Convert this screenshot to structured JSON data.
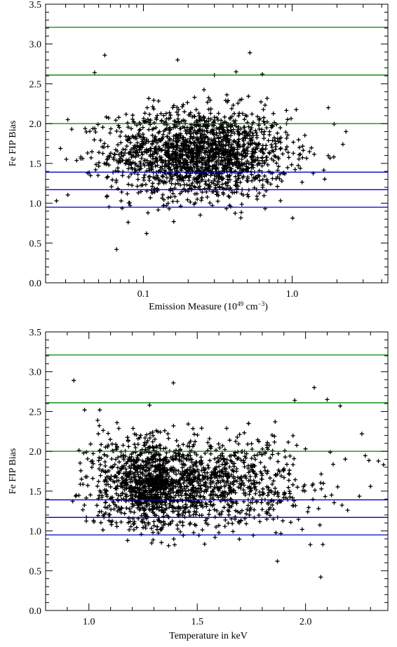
{
  "chart_data": [
    {
      "type": "scatter",
      "title": "",
      "xlabel": "Emission Measure (10",
      "xlabel_exp": "49",
      "xlabel_mid": " cm",
      "xlabel_exp2": "−3",
      "xlabel_end": ")",
      "ylabel": "Fe FIP Bias",
      "xscale": "log",
      "xlim": [
        0.022,
        4.4
      ],
      "ylim": [
        0.0,
        3.5
      ],
      "xticks": [
        0.1,
        1.0
      ],
      "xtick_labels": [
        "0.1",
        "1.0"
      ],
      "yticks": [
        0.0,
        0.5,
        1.0,
        1.5,
        2.0,
        2.5,
        3.0,
        3.5
      ],
      "ytick_labels": [
        "0.0",
        "0.5",
        "1.0",
        "1.5",
        "2.0",
        "2.5",
        "3.0",
        "3.5"
      ],
      "hlines": [
        {
          "y": 3.21,
          "color": "#008000"
        },
        {
          "y": 2.61,
          "color": "#008000"
        },
        {
          "y": 2.0,
          "color": "#008000"
        },
        {
          "y": 1.39,
          "color": "#0000cc"
        },
        {
          "y": 1.17,
          "color": "#0000cc"
        },
        {
          "y": 0.95,
          "color": "#0000cc"
        }
      ],
      "marker": "+",
      "x_center": 0.24,
      "x_spread_dex": 0.3,
      "y_center": 1.62,
      "y_spread": 0.28,
      "n_points": 1800,
      "outliers": [
        [
          0.066,
          0.42
        ],
        [
          0.105,
          0.62
        ],
        [
          0.055,
          2.86
        ],
        [
          0.17,
          2.8
        ],
        [
          0.52,
          2.89
        ],
        [
          0.047,
          2.64
        ],
        [
          0.3,
          2.61
        ],
        [
          0.42,
          2.65
        ],
        [
          0.63,
          2.62
        ],
        [
          0.031,
          2.05
        ],
        [
          0.033,
          1.93
        ],
        [
          1.75,
          2.2
        ],
        [
          2.3,
          1.9
        ],
        [
          0.038,
          1.56
        ],
        [
          0.079,
          0.76
        ],
        [
          0.16,
          0.77
        ]
      ]
    },
    {
      "type": "scatter",
      "title": "",
      "xlabel": "Temperature in keV",
      "ylabel": "Fe FIP Bias",
      "xscale": "linear",
      "xlim": [
        0.8,
        2.38
      ],
      "ylim": [
        0.0,
        3.5
      ],
      "xticks": [
        1.0,
        1.5,
        2.0
      ],
      "xtick_labels": [
        "1.0",
        "1.5",
        "2.0"
      ],
      "yticks": [
        0.0,
        0.5,
        1.0,
        1.5,
        2.0,
        2.5,
        3.0,
        3.5
      ],
      "ytick_labels": [
        "0.0",
        "0.5",
        "1.0",
        "1.5",
        "2.0",
        "2.5",
        "3.0",
        "3.5"
      ],
      "hlines": [
        {
          "y": 3.21,
          "color": "#008000"
        },
        {
          "y": 2.61,
          "color": "#008000"
        },
        {
          "y": 2.0,
          "color": "#008000"
        },
        {
          "y": 1.39,
          "color": "#0000cc"
        },
        {
          "y": 1.17,
          "color": "#0000cc"
        },
        {
          "y": 0.95,
          "color": "#0000cc"
        }
      ],
      "marker": "+",
      "x_center": 1.36,
      "x_spread": 0.16,
      "y_center": 1.6,
      "y_spread": 0.28,
      "n_points": 1800,
      "outliers": [
        [
          0.93,
          2.89
        ],
        [
          1.39,
          2.86
        ],
        [
          2.04,
          2.8
        ],
        [
          1.87,
          0.62
        ],
        [
          2.08,
          0.83
        ],
        [
          2.07,
          0.42
        ],
        [
          2.36,
          1.83
        ],
        [
          2.3,
          1.56
        ],
        [
          2.26,
          2.22
        ],
        [
          2.16,
          2.57
        ],
        [
          2.1,
          2.65
        ],
        [
          1.95,
          2.64
        ],
        [
          0.98,
          2.52
        ],
        [
          1.05,
          2.52
        ],
        [
          1.28,
          2.58
        ],
        [
          2.12,
          1.45
        ],
        [
          2.06,
          1.28
        ]
      ]
    }
  ]
}
